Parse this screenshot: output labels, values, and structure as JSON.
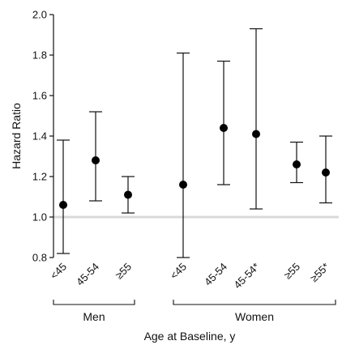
{
  "chart_data": {
    "type": "scatter",
    "subtype": "forest-plot-with-error-bars",
    "ylabel": "Hazard Ratio",
    "xlabel": "Age at Baseline, y",
    "ylim": [
      0.8,
      2.0
    ],
    "yticks": [
      "0.8",
      "1.0",
      "1.2",
      "1.4",
      "1.6",
      "1.8",
      "2.0"
    ],
    "reference_line": 1.0,
    "colors": {
      "points": "#000000",
      "reference": "#d9d9d9"
    },
    "groups": [
      {
        "label": "Men",
        "points": [
          {
            "category": "<45",
            "estimate": 1.06,
            "lower": 0.82,
            "upper": 1.38
          },
          {
            "category": "45-54",
            "estimate": 1.28,
            "lower": 1.08,
            "upper": 1.52
          },
          {
            "category": "≥55",
            "estimate": 1.11,
            "lower": 1.02,
            "upper": 1.2
          }
        ]
      },
      {
        "label": "Women",
        "points": [
          {
            "category": "<45",
            "estimate": 1.16,
            "lower": 0.8,
            "upper": 1.81
          },
          {
            "category": "45-54",
            "estimate": 1.44,
            "lower": 1.16,
            "upper": 1.77
          },
          {
            "category": "45-54*",
            "estimate": 1.41,
            "lower": 1.04,
            "upper": 1.93
          },
          {
            "category": "≥55",
            "estimate": 1.26,
            "lower": 1.17,
            "upper": 1.37
          },
          {
            "category": "≥55*",
            "estimate": 1.22,
            "lower": 1.07,
            "upper": 1.4
          }
        ]
      }
    ]
  }
}
